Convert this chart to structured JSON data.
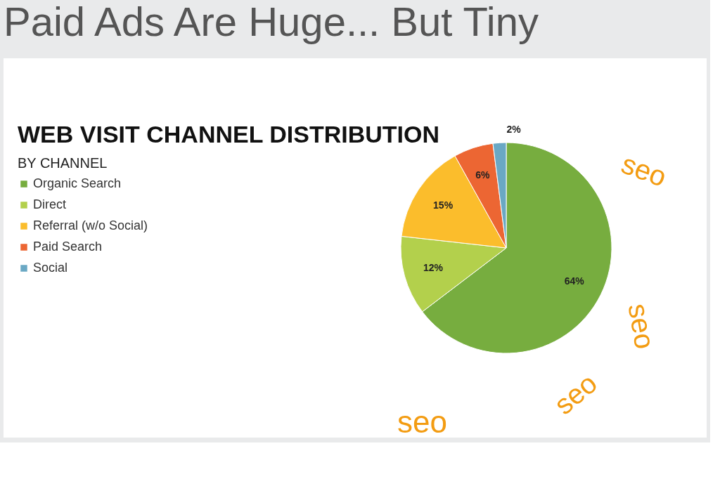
{
  "chart_data": {
    "type": "pie",
    "title": "Paid Ads Are Huge... But Tiny",
    "subtitle": "WEB VISIT CHANNEL DISTRIBUTION",
    "categories": [
      "Organic Search",
      "Direct",
      "Referral (w/o Social)",
      "Paid Search",
      "Social"
    ],
    "values": [
      64,
      12,
      15,
      6,
      2
    ],
    "colors": [
      "#77ad3f",
      "#b3d04c",
      "#fbbd2c",
      "#ec6633",
      "#6aa8c4"
    ],
    "value_labels": [
      "64%",
      "12%",
      "15%",
      "6%",
      "2%"
    ],
    "legend": "left",
    "annotations": [
      "BY CHANNEL",
      "seo",
      "seo",
      "seo",
      "seo"
    ]
  }
}
